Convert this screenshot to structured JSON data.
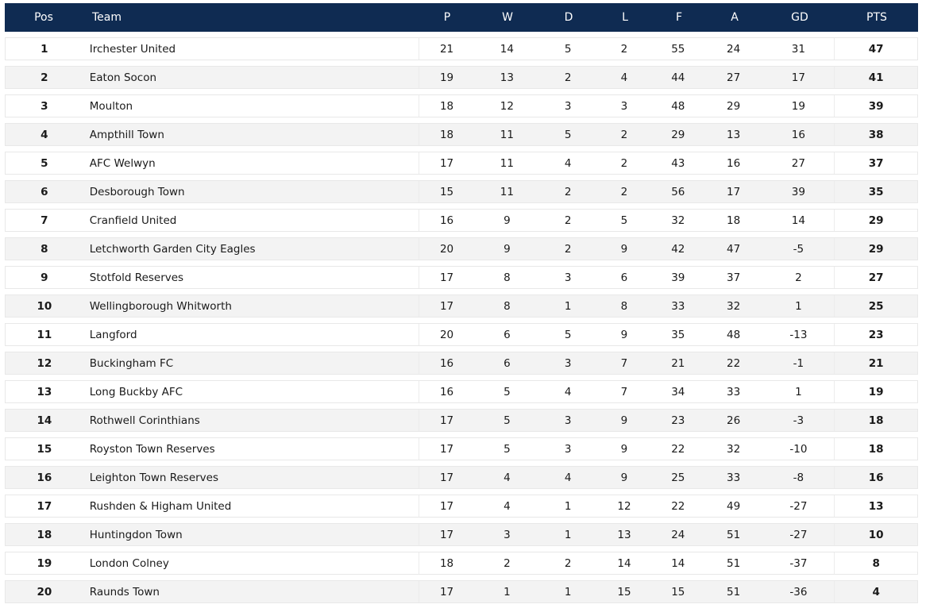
{
  "columns": {
    "pos": "Pos",
    "team": "Team",
    "p": "P",
    "w": "W",
    "d": "D",
    "l": "L",
    "f": "F",
    "a": "A",
    "gd": "GD",
    "pts": "PTS"
  },
  "colors": {
    "header_bg": "#0f2b52",
    "header_text": "#ffffff",
    "row_alt": "#f3f3f3"
  },
  "rows": [
    {
      "pos": "1",
      "team": "Irchester United",
      "p": "21",
      "w": "14",
      "d": "5",
      "l": "2",
      "f": "55",
      "a": "24",
      "gd": "31",
      "pts": "47"
    },
    {
      "pos": "2",
      "team": "Eaton Socon",
      "p": "19",
      "w": "13",
      "d": "2",
      "l": "4",
      "f": "44",
      "a": "27",
      "gd": "17",
      "pts": "41"
    },
    {
      "pos": "3",
      "team": "Moulton",
      "p": "18",
      "w": "12",
      "d": "3",
      "l": "3",
      "f": "48",
      "a": "29",
      "gd": "19",
      "pts": "39"
    },
    {
      "pos": "4",
      "team": "Ampthill Town",
      "p": "18",
      "w": "11",
      "d": "5",
      "l": "2",
      "f": "29",
      "a": "13",
      "gd": "16",
      "pts": "38"
    },
    {
      "pos": "5",
      "team": "AFC Welwyn",
      "p": "17",
      "w": "11",
      "d": "4",
      "l": "2",
      "f": "43",
      "a": "16",
      "gd": "27",
      "pts": "37"
    },
    {
      "pos": "6",
      "team": "Desborough Town",
      "p": "15",
      "w": "11",
      "d": "2",
      "l": "2",
      "f": "56",
      "a": "17",
      "gd": "39",
      "pts": "35"
    },
    {
      "pos": "7",
      "team": "Cranfield United",
      "p": "16",
      "w": "9",
      "d": "2",
      "l": "5",
      "f": "32",
      "a": "18",
      "gd": "14",
      "pts": "29"
    },
    {
      "pos": "8",
      "team": "Letchworth Garden City Eagles",
      "p": "20",
      "w": "9",
      "d": "2",
      "l": "9",
      "f": "42",
      "a": "47",
      "gd": "-5",
      "pts": "29"
    },
    {
      "pos": "9",
      "team": "Stotfold Reserves",
      "p": "17",
      "w": "8",
      "d": "3",
      "l": "6",
      "f": "39",
      "a": "37",
      "gd": "2",
      "pts": "27"
    },
    {
      "pos": "10",
      "team": "Wellingborough Whitworth",
      "p": "17",
      "w": "8",
      "d": "1",
      "l": "8",
      "f": "33",
      "a": "32",
      "gd": "1",
      "pts": "25"
    },
    {
      "pos": "11",
      "team": "Langford",
      "p": "20",
      "w": "6",
      "d": "5",
      "l": "9",
      "f": "35",
      "a": "48",
      "gd": "-13",
      "pts": "23"
    },
    {
      "pos": "12",
      "team": "Buckingham FC",
      "p": "16",
      "w": "6",
      "d": "3",
      "l": "7",
      "f": "21",
      "a": "22",
      "gd": "-1",
      "pts": "21"
    },
    {
      "pos": "13",
      "team": "Long Buckby AFC",
      "p": "16",
      "w": "5",
      "d": "4",
      "l": "7",
      "f": "34",
      "a": "33",
      "gd": "1",
      "pts": "19"
    },
    {
      "pos": "14",
      "team": "Rothwell Corinthians",
      "p": "17",
      "w": "5",
      "d": "3",
      "l": "9",
      "f": "23",
      "a": "26",
      "gd": "-3",
      "pts": "18"
    },
    {
      "pos": "15",
      "team": "Royston Town Reserves",
      "p": "17",
      "w": "5",
      "d": "3",
      "l": "9",
      "f": "22",
      "a": "32",
      "gd": "-10",
      "pts": "18"
    },
    {
      "pos": "16",
      "team": "Leighton Town Reserves",
      "p": "17",
      "w": "4",
      "d": "4",
      "l": "9",
      "f": "25",
      "a": "33",
      "gd": "-8",
      "pts": "16"
    },
    {
      "pos": "17",
      "team": "Rushden & Higham United",
      "p": "17",
      "w": "4",
      "d": "1",
      "l": "12",
      "f": "22",
      "a": "49",
      "gd": "-27",
      "pts": "13"
    },
    {
      "pos": "18",
      "team": "Huntingdon Town",
      "p": "17",
      "w": "3",
      "d": "1",
      "l": "13",
      "f": "24",
      "a": "51",
      "gd": "-27",
      "pts": "10"
    },
    {
      "pos": "19",
      "team": "London Colney",
      "p": "18",
      "w": "2",
      "d": "2",
      "l": "14",
      "f": "14",
      "a": "51",
      "gd": "-37",
      "pts": "8"
    },
    {
      "pos": "20",
      "team": "Raunds Town",
      "p": "17",
      "w": "1",
      "d": "1",
      "l": "15",
      "f": "15",
      "a": "51",
      "gd": "-36",
      "pts": "4"
    }
  ]
}
